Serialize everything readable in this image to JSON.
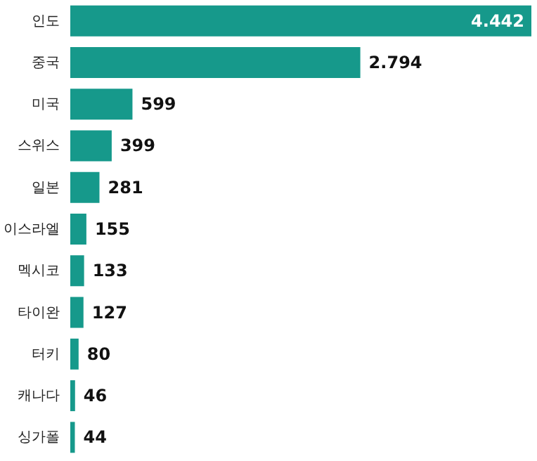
{
  "chart_data": {
    "type": "bar",
    "orientation": "horizontal",
    "categories": [
      "인도",
      "중국",
      "미국",
      "스위스",
      "일본",
      "이스라엘",
      "멕시코",
      "타이완",
      "터키",
      "캐나다",
      "싱가폴"
    ],
    "values": [
      4442,
      2794,
      599,
      399,
      281,
      155,
      133,
      127,
      80,
      46,
      44
    ],
    "value_labels": [
      "4.442",
      "2.794",
      "599",
      "399",
      "281",
      "155",
      "133",
      "127",
      "80",
      "46",
      "44"
    ],
    "color": "#16998b"
  }
}
